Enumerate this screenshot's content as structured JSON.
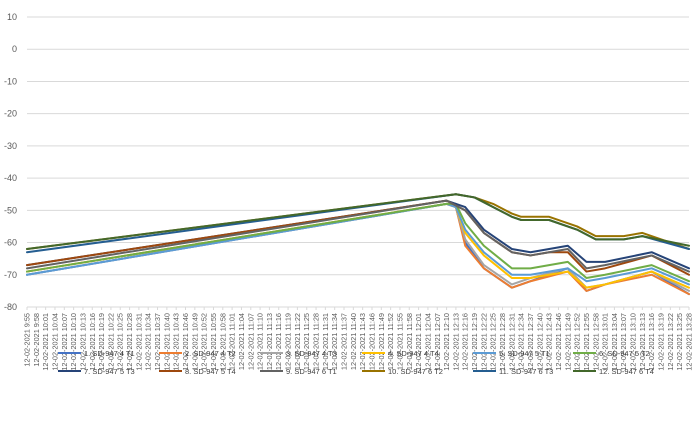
{
  "chart_data": {
    "type": "line",
    "ylim": [
      -80,
      10
    ],
    "yticks": [
      10,
      0,
      -10,
      -20,
      -30,
      -40,
      -50,
      -60,
      -70,
      -80
    ],
    "grid": "horizontal",
    "legend_position": "bottom",
    "xtick_labels": [
      "12-02-2021 9:55",
      "12-02-2021 9:58",
      "12-02-2021 10:01",
      "12-02-2021 10:04",
      "12-02-2021 10:07",
      "12-02-2021 10:10",
      "12-02-2021 10:13",
      "12-02-2021 10:16",
      "12-02-2021 10:19",
      "12-02-2021 10:22",
      "12-02-2021 10:25",
      "12-02-2021 10:28",
      "12-02-2021 10:31",
      "12-02-2021 10:34",
      "12-02-2021 10:37",
      "12-02-2021 10:40",
      "12-02-2021 10:43",
      "12-02-2021 10:46",
      "12-02-2021 10:49",
      "12-02-2021 10:52",
      "12-02-2021 10:55",
      "12-02-2021 10:58",
      "12-02-2021 11:01",
      "12-02-2021 11:04",
      "12-02-2021 11:07",
      "12-02-2021 11:10",
      "12-02-2021 11:13",
      "12-02-2021 11:16",
      "12-02-2021 11:19",
      "12-02-2021 11:22",
      "12-02-2021 11:25",
      "12-02-2021 11:28",
      "12-02-2021 11:31",
      "12-02-2021 11:34",
      "12-02-2021 11:37",
      "12-02-2021 11:40",
      "12-02-2021 11:43",
      "12-02-2021 11:46",
      "12-02-2021 11:49",
      "12-02-2021 11:52",
      "12-02-2021 11:55",
      "12-02-2021 11:58",
      "12-02-2021 12:01",
      "12-02-2021 12:04",
      "12-02-2021 12:07",
      "12-02-2021 12:10",
      "12-02-2021 12:13",
      "12-02-2021 12:16",
      "12-02-2021 12:19",
      "12-02-2021 12:22",
      "12-02-2021 12:25",
      "12-02-2021 12:28",
      "12-02-2021 12:31",
      "12-02-2021 12:34",
      "12-02-2021 12:37",
      "12-02-2021 12:40",
      "12-02-2021 12:43",
      "12-02-2021 12:46",
      "12-02-2021 12:49",
      "12-02-2021 12:52",
      "12-02-2021 12:55",
      "12-02-2021 12:58",
      "12-02-2021 13:01",
      "12-02-2021 13:04",
      "12-02-2021 13:07",
      "12-02-2021 13:10",
      "12-02-2021 13:13",
      "12-02-2021 13:16",
      "12-02-2021 13:19",
      "12-02-2021 13:22",
      "12-02-2021 13:25",
      "12-02-2021 13:28"
    ],
    "series": [
      {
        "name": "1. SD-947 4 T1",
        "color": "#4472c4",
        "points": [
          [
            "12-02-2021 9:55",
            -70
          ],
          [
            "12-02-2021 12:10",
            -48
          ],
          [
            "12-02-2021 12:13",
            -49
          ],
          [
            "12-02-2021 12:16",
            -60
          ],
          [
            "12-02-2021 12:22",
            -68
          ],
          [
            "12-02-2021 12:31",
            -74
          ],
          [
            "12-02-2021 12:37",
            -72
          ],
          [
            "12-02-2021 12:49",
            -68
          ],
          [
            "12-02-2021 12:55",
            -75
          ],
          [
            "12-02-2021 13:01",
            -73
          ],
          [
            "12-02-2021 13:16",
            -69
          ],
          [
            "12-02-2021 13:28",
            -76
          ]
        ]
      },
      {
        "name": "2. SD-947 4 T2",
        "color": "#ed7d31",
        "points": [
          [
            "12-02-2021 9:55",
            -69
          ],
          [
            "12-02-2021 12:10",
            -48
          ],
          [
            "12-02-2021 12:13",
            -49
          ],
          [
            "12-02-2021 12:16",
            -61
          ],
          [
            "12-02-2021 12:22",
            -68
          ],
          [
            "12-02-2021 12:31",
            -74
          ],
          [
            "12-02-2021 12:37",
            -72
          ],
          [
            "12-02-2021 12:49",
            -69
          ],
          [
            "12-02-2021 12:55",
            -75
          ],
          [
            "12-02-2021 13:01",
            -73
          ],
          [
            "12-02-2021 13:16",
            -70
          ],
          [
            "12-02-2021 13:28",
            -76
          ]
        ]
      },
      {
        "name": "3. SD-947 4 T3",
        "color": "#a5a5a5",
        "points": [
          [
            "12-02-2021 9:55",
            -70
          ],
          [
            "12-02-2021 12:10",
            -48
          ],
          [
            "12-02-2021 12:13",
            -49
          ],
          [
            "12-02-2021 12:16",
            -59
          ],
          [
            "12-02-2021 12:22",
            -67
          ],
          [
            "12-02-2021 12:31",
            -73
          ],
          [
            "12-02-2021 12:37",
            -71
          ],
          [
            "12-02-2021 12:49",
            -68
          ],
          [
            "12-02-2021 12:55",
            -74
          ],
          [
            "12-02-2021 13:01",
            -73
          ],
          [
            "12-02-2021 13:16",
            -69
          ],
          [
            "12-02-2021 13:28",
            -75
          ]
        ]
      },
      {
        "name": "4. SD-947 4 T4",
        "color": "#ffc000",
        "points": [
          [
            "12-02-2021 9:55",
            -69
          ],
          [
            "12-02-2021 12:10",
            -48
          ],
          [
            "12-02-2021 12:13",
            -49
          ],
          [
            "12-02-2021 12:16",
            -57
          ],
          [
            "12-02-2021 12:22",
            -64
          ],
          [
            "12-02-2021 12:31",
            -71
          ],
          [
            "12-02-2021 12:37",
            -71
          ],
          [
            "12-02-2021 12:49",
            -69
          ],
          [
            "12-02-2021 12:55",
            -74
          ],
          [
            "12-02-2021 13:01",
            -73
          ],
          [
            "12-02-2021 13:16",
            -69
          ],
          [
            "12-02-2021 13:28",
            -74
          ]
        ]
      },
      {
        "name": "5. SD-947 5 T1",
        "color": "#5b9bd5",
        "points": [
          [
            "12-02-2021 9:55",
            -70
          ],
          [
            "12-02-2021 12:10",
            -48
          ],
          [
            "12-02-2021 12:13",
            -49
          ],
          [
            "12-02-2021 12:16",
            -56
          ],
          [
            "12-02-2021 12:22",
            -63
          ],
          [
            "12-02-2021 12:31",
            -70
          ],
          [
            "12-02-2021 12:37",
            -70
          ],
          [
            "12-02-2021 12:49",
            -68
          ],
          [
            "12-02-2021 12:55",
            -72
          ],
          [
            "12-02-2021 13:01",
            -71
          ],
          [
            "12-02-2021 13:16",
            -68
          ],
          [
            "12-02-2021 13:28",
            -73
          ]
        ]
      },
      {
        "name": "6. SD-947 5 T2",
        "color": "#70ad47",
        "points": [
          [
            "12-02-2021 9:55",
            -69
          ],
          [
            "12-02-2021 12:10",
            -48
          ],
          [
            "12-02-2021 12:13",
            -48
          ],
          [
            "12-02-2021 12:16",
            -54
          ],
          [
            "12-02-2021 12:22",
            -61
          ],
          [
            "12-02-2021 12:31",
            -68
          ],
          [
            "12-02-2021 12:37",
            -68
          ],
          [
            "12-02-2021 12:49",
            -66
          ],
          [
            "12-02-2021 12:55",
            -71
          ],
          [
            "12-02-2021 13:01",
            -70
          ],
          [
            "12-02-2021 13:16",
            -67
          ],
          [
            "12-02-2021 13:28",
            -72
          ]
        ]
      },
      {
        "name": "7. SD-947 5 T3",
        "color": "#264478",
        "points": [
          [
            "12-02-2021 9:55",
            -67
          ],
          [
            "12-02-2021 12:10",
            -47
          ],
          [
            "12-02-2021 12:16",
            -49
          ],
          [
            "12-02-2021 12:22",
            -56
          ],
          [
            "12-02-2021 12:31",
            -62
          ],
          [
            "12-02-2021 12:37",
            -63
          ],
          [
            "12-02-2021 12:43",
            -62
          ],
          [
            "12-02-2021 12:49",
            -61
          ],
          [
            "12-02-2021 12:55",
            -66
          ],
          [
            "12-02-2021 13:01",
            -66
          ],
          [
            "12-02-2021 13:16",
            -63
          ],
          [
            "12-02-2021 13:28",
            -68
          ]
        ]
      },
      {
        "name": "8. SD-947 5 T4",
        "color": "#9e480e",
        "points": [
          [
            "12-02-2021 9:55",
            -67
          ],
          [
            "12-02-2021 12:10",
            -47
          ],
          [
            "12-02-2021 12:16",
            -50
          ],
          [
            "12-02-2021 12:22",
            -57
          ],
          [
            "12-02-2021 12:31",
            -63
          ],
          [
            "12-02-2021 12:37",
            -64
          ],
          [
            "12-02-2021 12:43",
            -63
          ],
          [
            "12-02-2021 12:49",
            -63
          ],
          [
            "12-02-2021 12:55",
            -69
          ],
          [
            "12-02-2021 13:01",
            -68
          ],
          [
            "12-02-2021 13:16",
            -64
          ],
          [
            "12-02-2021 13:28",
            -70
          ]
        ]
      },
      {
        "name": "9. SD-947 6 T1",
        "color": "#636363",
        "points": [
          [
            "12-02-2021 9:55",
            -68
          ],
          [
            "12-02-2021 12:10",
            -47
          ],
          [
            "12-02-2021 12:16",
            -50
          ],
          [
            "12-02-2021 12:22",
            -57
          ],
          [
            "12-02-2021 12:31",
            -63
          ],
          [
            "12-02-2021 12:37",
            -64
          ],
          [
            "12-02-2021 12:43",
            -63
          ],
          [
            "12-02-2021 12:49",
            -62
          ],
          [
            "12-02-2021 12:55",
            -68
          ],
          [
            "12-02-2021 13:01",
            -67
          ],
          [
            "12-02-2021 13:16",
            -64
          ],
          [
            "12-02-2021 13:28",
            -69
          ]
        ]
      },
      {
        "name": "10. SD-947 6 T2",
        "color": "#997300",
        "points": [
          [
            "12-02-2021 9:55",
            -62
          ],
          [
            "12-02-2021 12:13",
            -45
          ],
          [
            "12-02-2021 12:19",
            -46
          ],
          [
            "12-02-2021 12:25",
            -48
          ],
          [
            "12-02-2021 12:31",
            -51
          ],
          [
            "12-02-2021 12:34",
            -52
          ],
          [
            "12-02-2021 12:43",
            -52
          ],
          [
            "12-02-2021 12:52",
            -55
          ],
          [
            "12-02-2021 12:58",
            -58
          ],
          [
            "12-02-2021 13:07",
            -58
          ],
          [
            "12-02-2021 13:13",
            -57
          ],
          [
            "12-02-2021 13:28",
            -62
          ]
        ]
      },
      {
        "name": "11. SD-947 6 T3",
        "color": "#255e91",
        "points": [
          [
            "12-02-2021 9:55",
            -63
          ],
          [
            "12-02-2021 12:13",
            -45
          ],
          [
            "12-02-2021 12:19",
            -46
          ],
          [
            "12-02-2021 12:25",
            -49
          ],
          [
            "12-02-2021 12:31",
            -52
          ],
          [
            "12-02-2021 12:34",
            -53
          ],
          [
            "12-02-2021 12:43",
            -53
          ],
          [
            "12-02-2021 12:52",
            -56
          ],
          [
            "12-02-2021 12:58",
            -59
          ],
          [
            "12-02-2021 13:07",
            -59
          ],
          [
            "12-02-2021 13:13",
            -58
          ],
          [
            "12-02-2021 13:28",
            -62
          ]
        ]
      },
      {
        "name": "12. SD-947 6 T4",
        "color": "#43682b",
        "points": [
          [
            "12-02-2021 9:55",
            -62
          ],
          [
            "12-02-2021 12:13",
            -45
          ],
          [
            "12-02-2021 12:19",
            -46
          ],
          [
            "12-02-2021 12:25",
            -49
          ],
          [
            "12-02-2021 12:31",
            -52
          ],
          [
            "12-02-2021 12:34",
            -53
          ],
          [
            "12-02-2021 12:43",
            -53
          ],
          [
            "12-02-2021 12:52",
            -56
          ],
          [
            "12-02-2021 12:58",
            -59
          ],
          [
            "12-02-2021 13:07",
            -59
          ],
          [
            "12-02-2021 13:13",
            -58
          ],
          [
            "12-02-2021 13:28",
            -61
          ]
        ]
      }
    ]
  }
}
